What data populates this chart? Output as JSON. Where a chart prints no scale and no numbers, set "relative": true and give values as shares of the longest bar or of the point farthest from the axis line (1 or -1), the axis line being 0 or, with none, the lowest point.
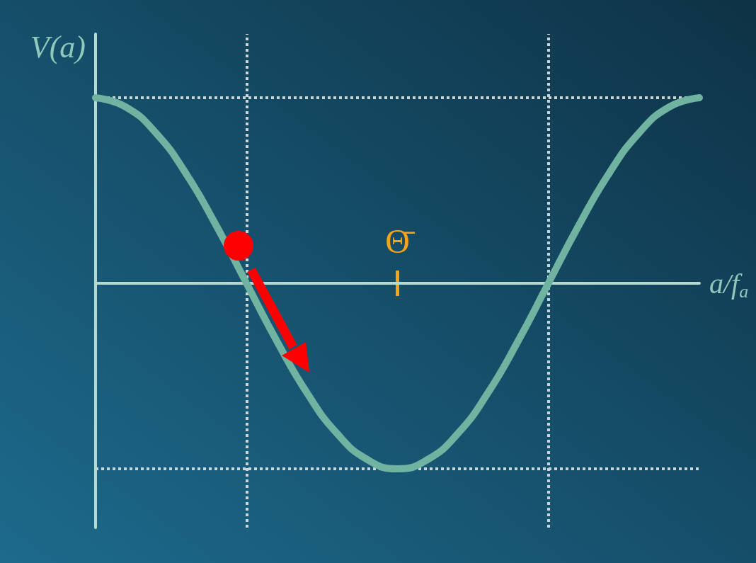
{
  "chart_data": {
    "type": "line",
    "relative": true,
    "ylabel": "V(a)",
    "xlabel": "a/f$_{a}$",
    "categories": [
      null,
      null,
      null,
      null,
      null,
      null,
      null,
      null,
      null,
      null,
      null,
      null,
      null,
      null,
      null,
      null,
      null,
      null,
      null,
      null,
      null
    ],
    "series": [
      {
        "color": "#6fb3a0",
        "values": [
          1,
          0.95,
          0.81,
          0.59,
          0.31,
          0,
          -0.31,
          -0.59,
          -0.81,
          -0.95,
          -1,
          -0.95,
          -0.81,
          -0.59,
          -0.31,
          0,
          0.31,
          0.59,
          0.81,
          0.95,
          1
        ]
      }
    ],
    "annotations": [
      "Θ̄"
    ],
    "line_style": "solid",
    "grid": false
  }
}
